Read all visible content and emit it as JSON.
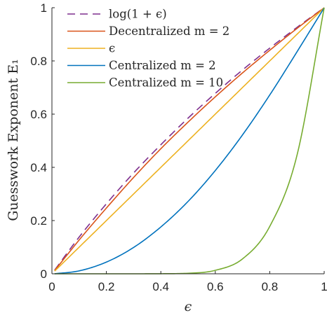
{
  "chart_data": {
    "type": "line",
    "title": "",
    "xlabel": "ϵ",
    "ylabel": "Guesswork Exponent E₁",
    "xlim": [
      0,
      1
    ],
    "ylim": [
      0,
      1
    ],
    "grid": false,
    "legend_position": "top-left",
    "x_ticks": [
      "0",
      "0.2",
      "0.4",
      "0.6",
      "0.8",
      "1"
    ],
    "y_ticks": [
      "0",
      "0.2",
      "0.4",
      "0.6",
      "0.8",
      "1"
    ],
    "x": [
      0.01,
      0.1,
      0.2,
      0.3,
      0.4,
      0.5,
      0.6,
      0.7,
      0.8,
      0.9,
      1.0
    ],
    "series": [
      {
        "name": "log(1 + ϵ)",
        "color": "#7E2F8E",
        "dash": "dashed",
        "values": [
          0.014,
          0.138,
          0.263,
          0.379,
          0.485,
          0.585,
          0.678,
          0.766,
          0.848,
          0.926,
          1.0
        ]
      },
      {
        "name": "Decentralized m = 2",
        "color": "#D95319",
        "dash": "solid",
        "values": [
          0.012,
          0.127,
          0.247,
          0.362,
          0.47,
          0.57,
          0.665,
          0.755,
          0.84,
          0.922,
          1.0
        ]
      },
      {
        "name": "ϵ",
        "color": "#EDB120",
        "dash": "solid",
        "values": [
          0.01,
          0.1,
          0.2,
          0.3,
          0.4,
          0.5,
          0.6,
          0.7,
          0.8,
          0.9,
          1.0
        ]
      },
      {
        "name": "Centralized m = 2",
        "color": "#0072BD",
        "dash": "solid",
        "values": [
          0.0001,
          0.011,
          0.044,
          0.099,
          0.176,
          0.272,
          0.388,
          0.522,
          0.672,
          0.834,
          1.0
        ]
      },
      {
        "name": "Centralized m = 10",
        "color": "#77AC30",
        "dash": "solid",
        "values": [
          0.0,
          0.0,
          0.0,
          0.0,
          0.0003,
          0.002,
          0.013,
          0.056,
          0.178,
          0.445,
          1.0
        ]
      }
    ]
  }
}
